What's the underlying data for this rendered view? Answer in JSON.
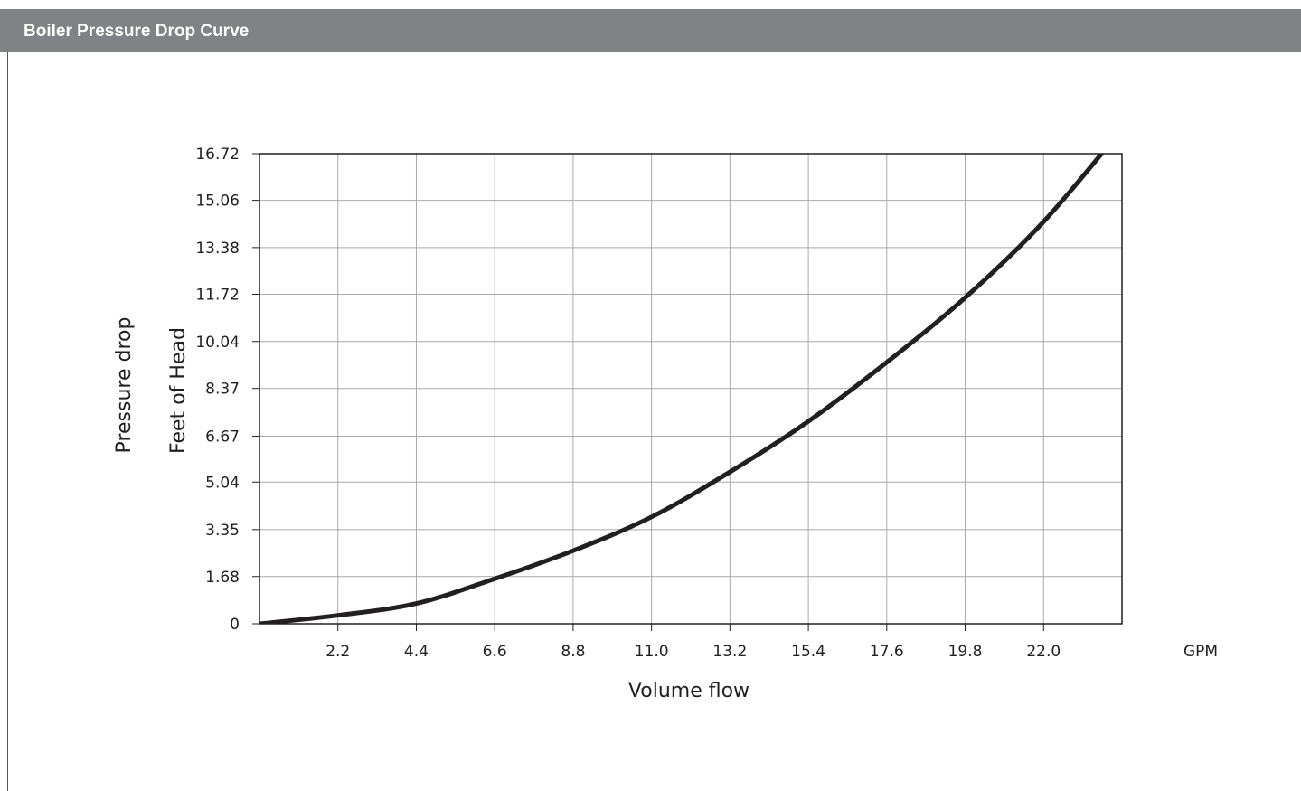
{
  "header": {
    "title": "Boiler Pressure Drop Curve"
  },
  "colors": {
    "header_bg": "#818285",
    "curve": "#231f20",
    "grid": "#a7a9ac"
  },
  "chart_data": {
    "type": "line",
    "title": "Boiler Pressure Drop Curve",
    "xlabel": "Volume flow",
    "x_unit": "GPM",
    "ylabel_line1": "Pressure drop",
    "ylabel_line2": "Feet of Head",
    "xlim": [
      0,
      24.2
    ],
    "ylim": [
      0,
      16.72
    ],
    "grid": true,
    "legend": "none",
    "x_ticks": [
      "2.2",
      "4.4",
      "6.6",
      "8.8",
      "11.0",
      "13.2",
      "15.4",
      "17.6",
      "19.8",
      "22.0"
    ],
    "y_ticks": [
      "0",
      "1.68",
      "3.35",
      "5.04",
      "6.67",
      "8.37",
      "10.04",
      "11.72",
      "13.38",
      "15.06",
      "16.72"
    ],
    "series": [
      {
        "x": [
          0,
          2.2,
          4.4,
          6.6,
          8.8,
          11.0,
          13.2,
          15.4,
          17.6,
          19.8,
          22.0,
          24.2
        ],
        "y": [
          0,
          0.3,
          0.72,
          1.6,
          2.6,
          3.8,
          5.4,
          7.2,
          9.3,
          11.6,
          14.3,
          17.6
        ]
      }
    ]
  }
}
